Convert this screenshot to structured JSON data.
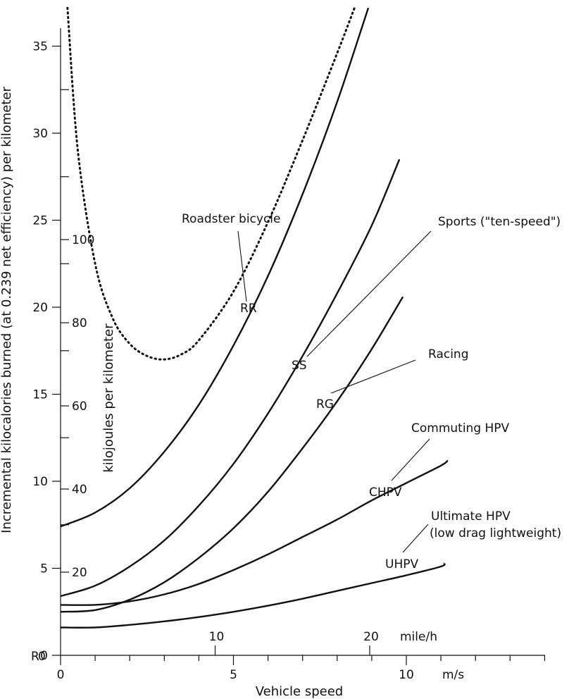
{
  "chart_data": {
    "type": "line",
    "xlabel": "Vehicle speed",
    "xunit": "m/s",
    "xlim": [
      0,
      14
    ],
    "x_ticks": [
      0,
      5,
      10
    ],
    "ylabel": "Incremental kilocalories burned (at 0.239 net efficiency) per kilometer",
    "ylim": [
      0,
      35
    ],
    "y_ticks": [
      0,
      5,
      10,
      15,
      20,
      25,
      30,
      35
    ],
    "secondary_y": {
      "label": "kilojoules per kilometer",
      "ticks": [
        0,
        20,
        40,
        60,
        80,
        100
      ]
    },
    "secondary_x": {
      "unit": "mile/h",
      "ticks": [
        10,
        20
      ]
    },
    "series": [
      {
        "name": "Roadster bicycle",
        "code": "RR",
        "style": "dotted",
        "x": [
          0.2,
          0.5,
          1.0,
          1.5,
          2.0,
          2.5,
          3.0,
          3.5,
          4.0,
          5.0,
          6.0,
          7.0,
          8.0,
          8.5
        ],
        "y": [
          37.2,
          29.0,
          22.5,
          19.4,
          17.9,
          17.2,
          17.0,
          17.3,
          18.1,
          20.9,
          24.9,
          29.6,
          34.6,
          37.2
        ]
      },
      {
        "name": "Sports (\"ten-speed\")",
        "code": "SS",
        "style": "solid",
        "x": [
          0,
          1,
          2,
          3,
          4,
          5,
          6,
          7,
          8,
          8.9
        ],
        "y": [
          7.4,
          8.2,
          9.6,
          11.7,
          14.4,
          17.8,
          21.8,
          26.5,
          31.8,
          37.2
        ]
      },
      {
        "name": "Racing",
        "code": "RG",
        "style": "solid",
        "x": [
          0,
          1,
          2,
          3,
          4,
          5,
          6,
          7,
          8,
          9,
          9.8
        ],
        "y": [
          3.4,
          4.0,
          5.1,
          6.6,
          8.6,
          11.0,
          13.9,
          17.2,
          20.8,
          24.7,
          28.5
        ]
      },
      {
        "name": "Commuting HPV",
        "code": "CHPV",
        "style": "solid",
        "x": [
          0,
          1,
          2,
          3,
          4,
          5,
          6,
          7,
          8,
          9,
          9.9
        ],
        "y": [
          2.5,
          2.6,
          3.2,
          4.2,
          5.6,
          7.3,
          9.4,
          11.9,
          14.6,
          17.6,
          20.6
        ]
      },
      {
        "name": "Ultimate HPV (low drag lightweight)",
        "code": "UHPV",
        "style": "solid",
        "x": [
          0,
          1,
          2,
          3,
          4,
          5,
          6,
          7,
          8,
          9,
          10,
          11,
          11.1
        ],
        "y": [
          1.6,
          1.6,
          1.75,
          1.95,
          2.2,
          2.5,
          2.85,
          3.25,
          3.7,
          4.15,
          4.6,
          5.1,
          5.3
        ]
      },
      {
        "name": "",
        "style": "solid",
        "x": [
          0,
          1,
          2,
          3,
          4,
          5,
          6,
          7,
          8,
          9,
          10,
          11,
          11.2
        ],
        "y": [
          2.9,
          2.9,
          3.1,
          3.5,
          4.1,
          4.9,
          5.8,
          6.8,
          7.8,
          8.9,
          9.9,
          10.9,
          11.2
        ]
      }
    ],
    "annotations": {
      "roadster": "Roadster bicycle",
      "sports": "Sports (\"ten-speed\")",
      "racing": "Racing",
      "commuting": "Commuting HPV",
      "ultimate_1": "Ultimate HPV",
      "ultimate_2": "(low drag lightweight)",
      "rr": "RR",
      "ss": "SS",
      "rg": "RG",
      "chpv": "CHPV",
      "uhpv": "UHPV"
    },
    "origin_label": "R",
    "grid": false,
    "legend": "none"
  }
}
